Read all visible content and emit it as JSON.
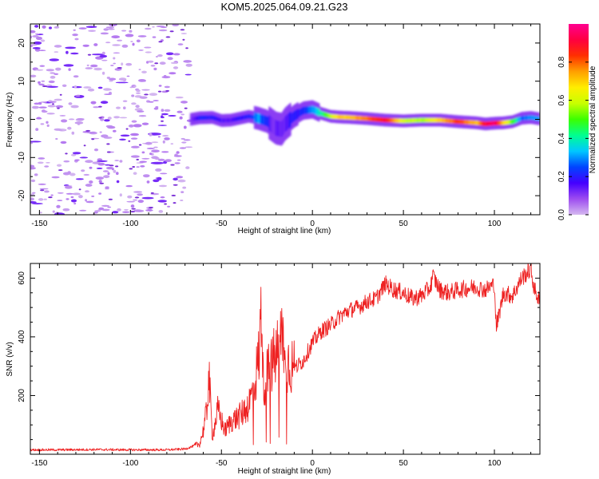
{
  "title": "KOM5.2025.064.09.21.G23",
  "chart_data": [
    {
      "type": "heatmap",
      "title": "KOM5.2025.064.09.21.G23",
      "xlabel": "Height of straight line (km)",
      "ylabel": "Frequency (Hz)",
      "xlim": [
        -155,
        125
      ],
      "ylim": [
        -25,
        25
      ],
      "x_ticks": [
        "-150",
        "-100",
        "-50",
        "0",
        "50",
        "100"
      ],
      "y_ticks": [
        "-20",
        "-10",
        "0",
        "10",
        "20"
      ],
      "colorbar": {
        "label": "Normalized spectral amplitude",
        "range": [
          0,
          1
        ],
        "ticks": [
          "0.0",
          "0.2",
          "0.4",
          "0.6",
          "0.8"
        ],
        "colormap": [
          "#d5b8f0",
          "#9d4cf0",
          "#4400ff",
          "#0044ff",
          "#00c8ff",
          "#00ff90",
          "#3cff00",
          "#c8ff00",
          "#ffee00",
          "#ffa000",
          "#ff3000",
          "#ff0040",
          "#ff0090"
        ]
      },
      "noise_region": {
        "x_from": -155,
        "x_to": -67,
        "amplitude_range": [
          0.0,
          0.12
        ]
      },
      "ridge": {
        "x": [
          -67,
          -62,
          -55,
          -50,
          -45,
          -40,
          -35,
          -30,
          -25,
          -22,
          -20,
          -17,
          -15,
          -10,
          -5,
          0,
          5,
          10,
          15,
          20,
          30,
          40,
          50,
          60,
          70,
          80,
          90,
          95,
          100,
          105,
          110,
          115,
          120,
          125
        ],
        "freq_hz": [
          0.0,
          0.4,
          0.5,
          -0.3,
          -0.2,
          0.3,
          0.8,
          0.3,
          -0.5,
          -1.6,
          -2.3,
          -2.6,
          -1.2,
          0.9,
          2.3,
          2.6,
          1.5,
          0.8,
          0.6,
          0.5,
          0.2,
          -0.2,
          -0.4,
          -0.2,
          -0.2,
          -0.6,
          -0.9,
          -1.2,
          -1.0,
          -0.9,
          -0.6,
          0.3,
          0.5,
          0.1
        ],
        "amplitude": [
          0.1,
          0.2,
          0.2,
          0.15,
          0.15,
          0.2,
          0.2,
          0.3,
          0.2,
          0.12,
          0.12,
          0.12,
          0.15,
          0.2,
          0.2,
          0.3,
          0.4,
          0.6,
          0.7,
          0.7,
          0.8,
          0.9,
          0.6,
          0.55,
          0.7,
          0.85,
          0.7,
          0.9,
          0.95,
          0.7,
          0.5,
          0.25,
          0.3,
          0.3
        ]
      }
    },
    {
      "type": "line",
      "xlabel": "Height of straight line (km)",
      "ylabel": "SNR (v/v)",
      "xlim": [
        -155,
        125
      ],
      "ylim": [
        0,
        650
      ],
      "x_ticks": [
        "-150",
        "-100",
        "-50",
        "0",
        "50",
        "100"
      ],
      "y_ticks": [
        "200",
        "400",
        "600"
      ],
      "series": [
        {
          "name": "SNR",
          "color": "#ee2222",
          "x": [
            -155,
            -140,
            -120,
            -100,
            -80,
            -70,
            -62,
            -60,
            -58,
            -57,
            -55,
            -52,
            -48,
            -45,
            -40,
            -35,
            -32,
            -29,
            -28,
            -27,
            -25,
            -22,
            -18,
            -16,
            -15,
            -13,
            -10,
            -5,
            0,
            5,
            10,
            15,
            20,
            25,
            30,
            35,
            40,
            45,
            50,
            55,
            60,
            65,
            66,
            70,
            75,
            80,
            85,
            90,
            95,
            100,
            101,
            105,
            110,
            115,
            120,
            122,
            125
          ],
          "y": [
            15,
            15,
            16,
            15,
            15,
            18,
            35,
            80,
            150,
            280,
            60,
            150,
            80,
            110,
            130,
            170,
            230,
            350,
            540,
            240,
            270,
            310,
            370,
            420,
            280,
            320,
            290,
            320,
            380,
            420,
            440,
            470,
            490,
            500,
            520,
            530,
            580,
            560,
            550,
            530,
            540,
            570,
            610,
            560,
            550,
            560,
            565,
            570,
            560,
            580,
            430,
            550,
            540,
            600,
            630,
            560,
            520
          ]
        }
      ]
    }
  ]
}
